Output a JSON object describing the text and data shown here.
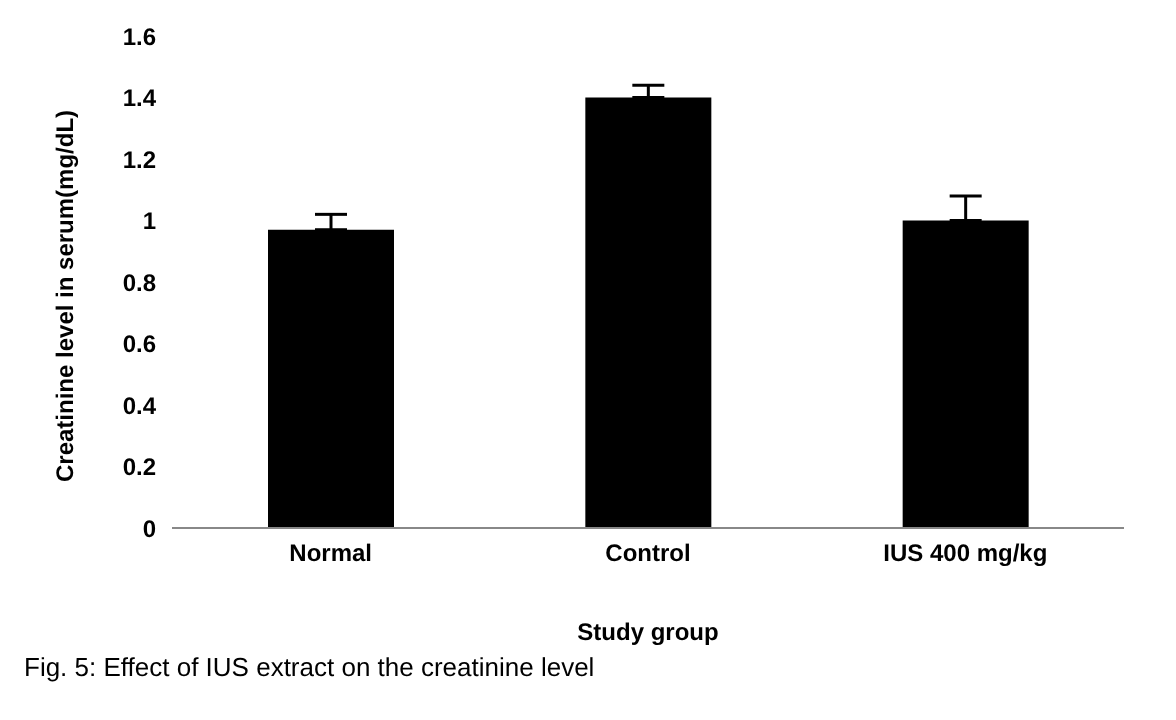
{
  "chart_data": {
    "type": "bar",
    "xlabel": "Study group",
    "ylabel": "Creatinine level in serum(mg/dL)",
    "categories": [
      "Normal",
      "Control",
      "IUS 400 mg/kg"
    ],
    "values": [
      0.97,
      1.4,
      1.0
    ],
    "color": "#000000",
    "errors": [
      [
        0.97,
        1.02
      ],
      [
        1.4,
        1.44
      ],
      [
        1.0,
        1.08
      ]
    ],
    "ylim": [
      0,
      1.6
    ],
    "yticks": [
      0,
      0.2,
      0.4,
      0.6,
      0.8,
      1,
      1.2,
      1.4,
      1.6
    ],
    "grid": false,
    "legend": false,
    "annotations": [
      "Fig. 5: Effect of IUS extract on the creatinine level"
    ]
  }
}
